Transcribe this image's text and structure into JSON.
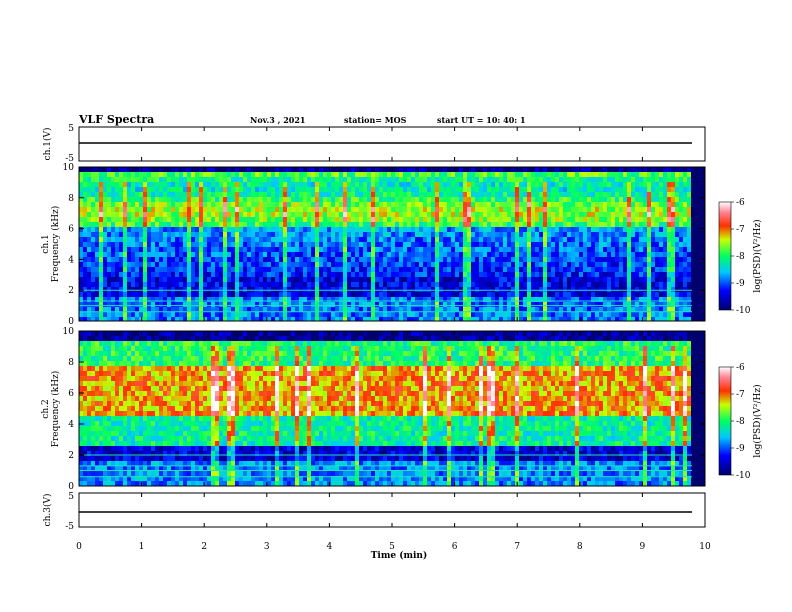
{
  "header": {
    "title": "VLF Spectra",
    "date": "Nov.3 , 2021",
    "station": "station= MOS",
    "start": "start UT = 10: 40: 1"
  },
  "chart_data": [
    {
      "type": "line",
      "name_label": "ch.1(V)",
      "ylim": [
        -5,
        5
      ],
      "ticks": [
        "5",
        "-5"
      ],
      "values_description_free": true,
      "level": 0
    },
    {
      "type": "heatmap",
      "ylabel": "Frequency (kHz)",
      "channel_label": "ch.1",
      "ylim": [
        0,
        10
      ],
      "yticks": [
        "0",
        "2",
        "4",
        "6",
        "8",
        "10"
      ],
      "xlim": [
        0,
        10
      ],
      "colorbar": {
        "label": "log(PSD)(V²/Hz)",
        "ticks": [
          "-6",
          "-7",
          "-8",
          "-9",
          "-10"
        ],
        "range": [
          -10,
          -6
        ]
      }
    },
    {
      "type": "heatmap",
      "ylabel": "Frequency (kHz)",
      "channel_label": "ch.2",
      "ylim": [
        0,
        10
      ],
      "yticks": [
        "0",
        "2",
        "4",
        "6",
        "8",
        "10"
      ],
      "xlim": [
        0,
        10
      ],
      "colorbar": {
        "label": "log(PSD)(V²/Hz)",
        "ticks": [
          "-6",
          "-7",
          "-8",
          "-9",
          "-10"
        ],
        "range": [
          -10,
          -6
        ]
      }
    },
    {
      "type": "line",
      "name_label": "ch.3(V)",
      "ylim": [
        -5,
        5
      ],
      "ticks": [
        "5",
        "-5"
      ],
      "level": 0
    }
  ],
  "xaxis": {
    "label": "Time (min)",
    "ticks": [
      "0",
      "1",
      "2",
      "3",
      "4",
      "5",
      "6",
      "7",
      "8",
      "9",
      "10"
    ],
    "range": [
      0,
      10
    ]
  }
}
